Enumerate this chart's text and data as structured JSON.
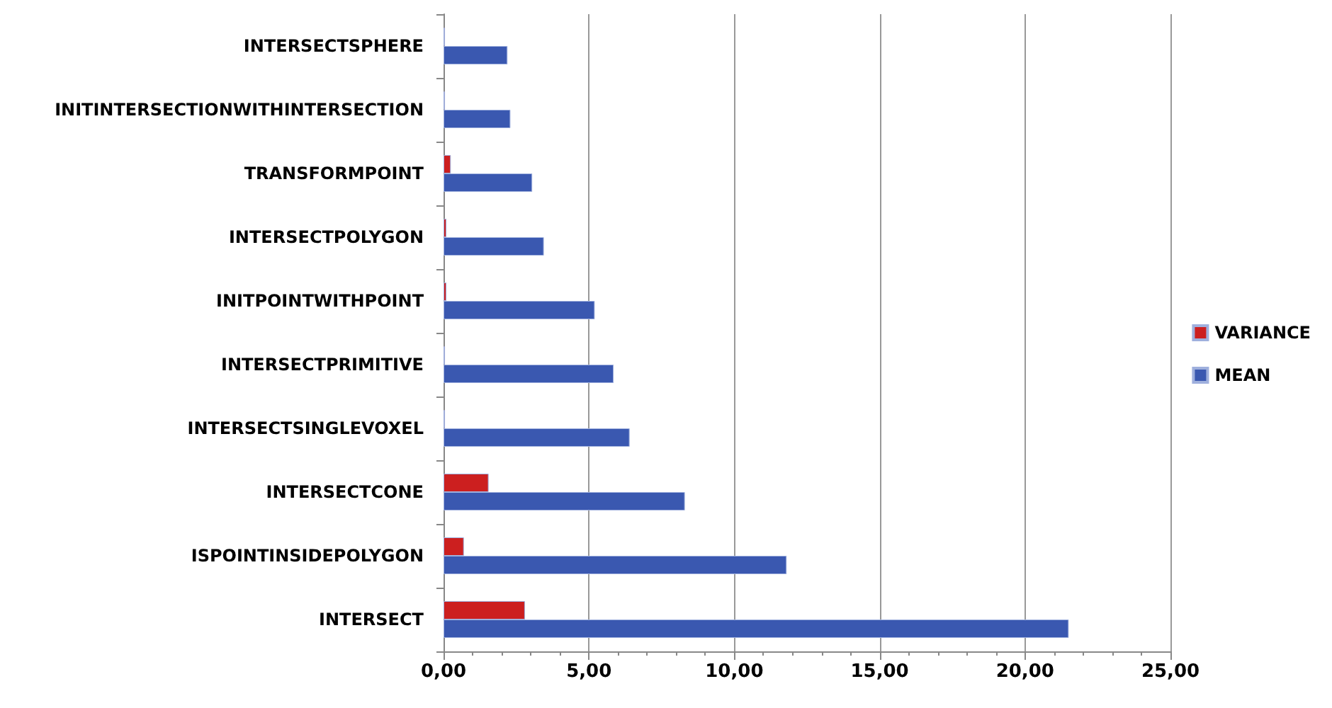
{
  "chart_data": {
    "type": "bar",
    "orientation": "horizontal",
    "categories": [
      "INTERSECTSPHERE",
      "INITINTERSECTIONWITHINTERSECTION",
      "TRANSFORMPOINT",
      "INTERSECTPOLYGON",
      "INITPOINTWITHPOINT",
      "INTERSECTPRIMITIVE",
      "INTERSECTSINGLEVOXEL",
      "INTERSECTCONE",
      "ISPOINTINSIDEPOLYGON",
      "INTERSECT"
    ],
    "series": [
      {
        "name": "VARIANCE",
        "color": "#cc1f1f",
        "values": [
          0.05,
          0.05,
          0.25,
          0.1,
          0.1,
          0.05,
          0.05,
          1.55,
          0.7,
          2.8
        ]
      },
      {
        "name": "MEAN",
        "color": "#3a58b0",
        "values": [
          2.2,
          2.3,
          3.05,
          3.45,
          5.2,
          5.85,
          6.4,
          8.3,
          11.8,
          21.5
        ]
      }
    ],
    "xlim": [
      0,
      25
    ],
    "xticks": [
      {
        "value": 0,
        "label": "0,00"
      },
      {
        "value": 5,
        "label": "5,00"
      },
      {
        "value": 10,
        "label": "10,00"
      },
      {
        "value": 15,
        "label": "15,00"
      },
      {
        "value": 20,
        "label": "20,00"
      },
      {
        "value": 25,
        "label": "25,00"
      }
    ],
    "grid": "x",
    "legend": "right"
  }
}
